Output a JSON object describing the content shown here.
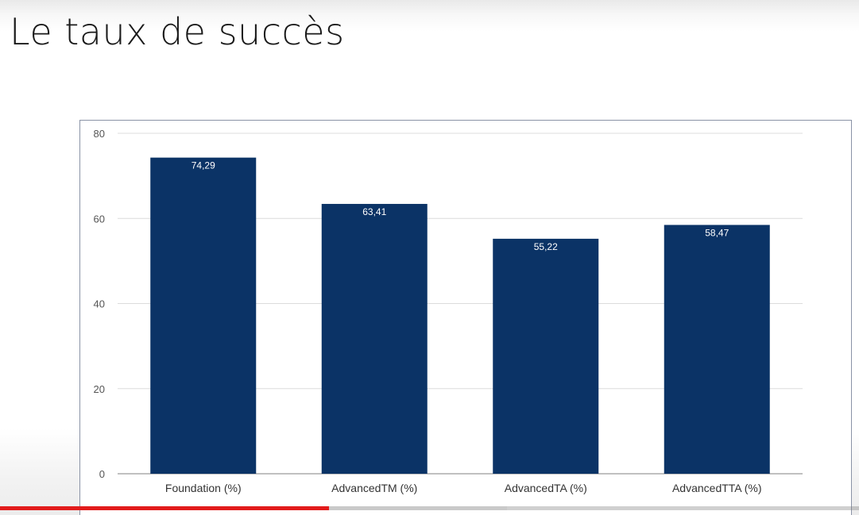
{
  "slide": {
    "title": "Le taux de succès"
  },
  "chart_data": {
    "type": "bar",
    "categories": [
      "Foundation (%)",
      "AdvancedTM (%)",
      "AdvancedTA (%)",
      "AdvancedTTA (%)"
    ],
    "values": [
      74.29,
      63.41,
      55.22,
      58.47
    ],
    "data_labels": [
      "74,29",
      "63,41",
      "55,22",
      "58,47"
    ],
    "yticks": [
      "0",
      "20",
      "40",
      "60",
      "80"
    ],
    "ylim": [
      0,
      80
    ],
    "grid": true,
    "legend": "none",
    "bar_color": "#0b3366",
    "grid_color": "#dcdcdc"
  },
  "video": {
    "played_fraction": 0.383,
    "buffered_fraction": 0.59,
    "played_color": "#e21b1b"
  }
}
